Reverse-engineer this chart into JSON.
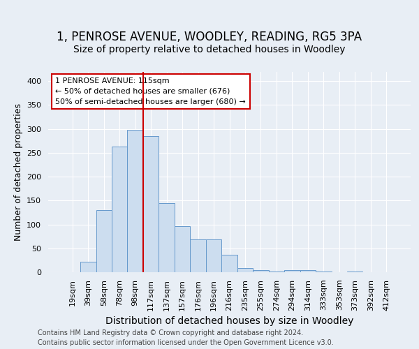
{
  "title1": "1, PENROSE AVENUE, WOODLEY, READING, RG5 3PA",
  "title2": "Size of property relative to detached houses in Woodley",
  "xlabel": "Distribution of detached houses by size in Woodley",
  "ylabel": "Number of detached properties",
  "footnote1": "Contains HM Land Registry data © Crown copyright and database right 2024.",
  "footnote2": "Contains public sector information licensed under the Open Government Licence v3.0.",
  "bar_labels": [
    "19sqm",
    "39sqm",
    "58sqm",
    "78sqm",
    "98sqm",
    "117sqm",
    "137sqm",
    "157sqm",
    "176sqm",
    "196sqm",
    "216sqm",
    "235sqm",
    "255sqm",
    "274sqm",
    "294sqm",
    "314sqm",
    "333sqm",
    "353sqm",
    "373sqm",
    "392sqm",
    "412sqm"
  ],
  "bar_values": [
    0,
    22,
    130,
    263,
    298,
    285,
    145,
    97,
    68,
    68,
    36,
    9,
    5,
    2,
    5,
    5,
    2,
    0,
    2,
    0,
    0
  ],
  "bar_color": "#ccddef",
  "bar_edgecolor": "#6699cc",
  "vline_color": "#cc0000",
  "vline_bin": 5,
  "annotation_line1": "1 PENROSE AVENUE: 115sqm",
  "annotation_line2": "← 50% of detached houses are smaller (676)",
  "annotation_line3": "50% of semi-detached houses are larger (680) →",
  "annotation_box_color": "#ffffff",
  "annotation_box_edgecolor": "#cc0000",
  "ylim": [
    0,
    420
  ],
  "yticks": [
    0,
    50,
    100,
    150,
    200,
    250,
    300,
    350,
    400
  ],
  "background_color": "#e8eef5",
  "plot_background_color": "#e8eef5",
  "grid_color": "#ffffff",
  "title1_fontsize": 12,
  "title2_fontsize": 10,
  "xlabel_fontsize": 10,
  "ylabel_fontsize": 9,
  "tick_fontsize": 8,
  "footnote_fontsize": 7
}
